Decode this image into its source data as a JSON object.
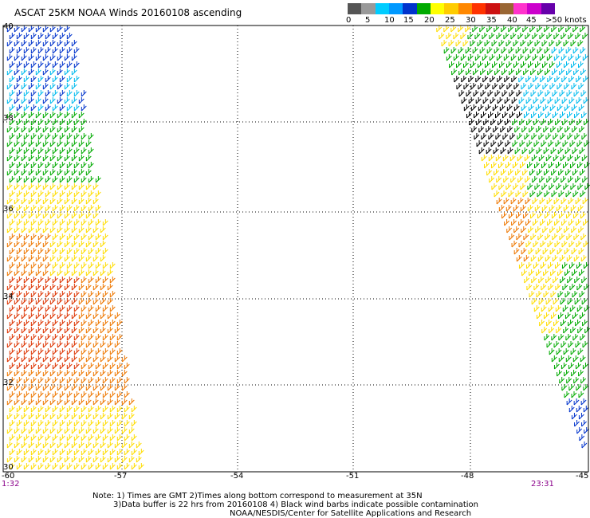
{
  "header": {
    "title": "ASCAT 25KM NOAA Winds 20160108 ascending"
  },
  "legend": {
    "colors": [
      "#555555",
      "#999999",
      "#00ccff",
      "#0099ff",
      "#0033cc",
      "#00aa00",
      "#ffff00",
      "#ffcc00",
      "#ff8800",
      "#ff3300",
      "#cc1111",
      "#996633",
      "#ff33cc",
      "#cc00cc",
      "#6600aa"
    ],
    "labels": [
      "0",
      "5",
      "10",
      "15",
      "20",
      "25",
      "30",
      "35",
      "40",
      "45",
      ">50 knots"
    ]
  },
  "axes": {
    "lat_labels": [
      "40",
      "38",
      "36",
      "34",
      "32",
      "30"
    ],
    "lon_labels": [
      "-60",
      "-57",
      "-54",
      "-51",
      "-48",
      "-45"
    ]
  },
  "times": {
    "left": "1:32",
    "right": "23:31"
  },
  "notes": {
    "line1": "Note: 1) Times are GMT 2)Times along bottom correspond to measurement at 35N",
    "line2": "3)Data buffer is 22 hrs from 20160108 4) Black wind barbs indicate possible contamination",
    "line3": "NOAA/NESDIS/Center for Satellite Applications and Research"
  },
  "colors": {
    "barb_black": "#000000",
    "barb_blue": "#0033cc",
    "barb_cyan": "#00bbee",
    "barb_green": "#00aa00",
    "barb_yellow": "#ffdd00",
    "barb_orange": "#ee7700",
    "barb_red": "#dd3300"
  }
}
